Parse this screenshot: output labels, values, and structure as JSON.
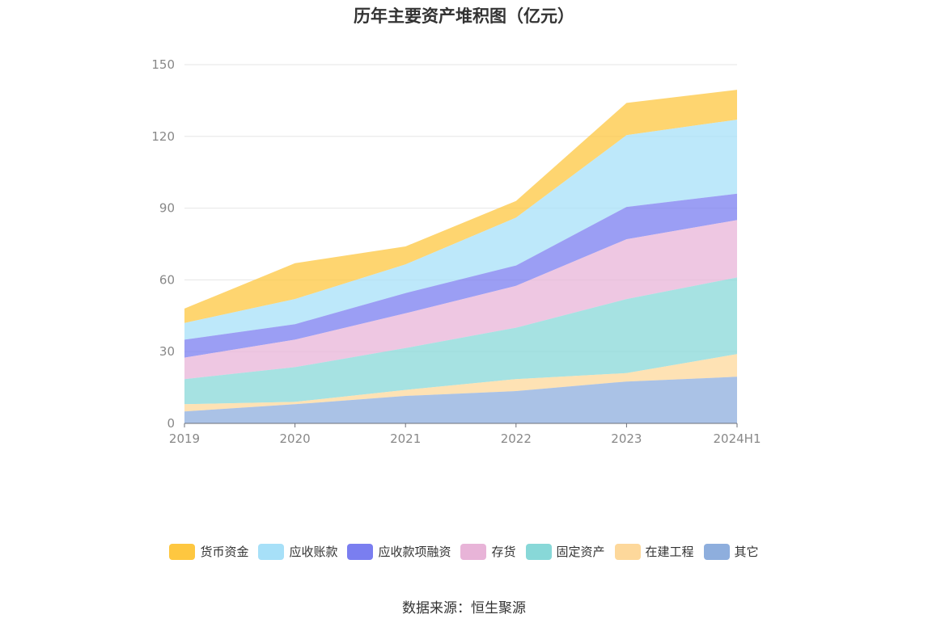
{
  "chart_data": {
    "type": "area",
    "stacked": true,
    "title": "历年主要资产堆积图（亿元）",
    "x": [
      "2019",
      "2020",
      "2021",
      "2022",
      "2023",
      "2024H1"
    ],
    "ylim": [
      0,
      150
    ],
    "yticks": [
      0,
      30,
      60,
      90,
      120,
      150
    ],
    "grid": true,
    "legend_position": "bottom",
    "series": [
      {
        "name": "其它",
        "color": "#8eaedd",
        "values": [
          5.0,
          8.0,
          11.5,
          13.5,
          17.5,
          19.5
        ]
      },
      {
        "name": "在建工程",
        "color": "#fdd89b",
        "values": [
          3.0,
          1.0,
          2.5,
          5.0,
          3.5,
          9.5
        ]
      },
      {
        "name": "固定资产",
        "color": "#88d8d8",
        "values": [
          10.5,
          14.5,
          17.5,
          21.5,
          31.0,
          32.0
        ]
      },
      {
        "name": "存货",
        "color": "#e8b4d8",
        "values": [
          9.0,
          11.5,
          14.5,
          17.5,
          25.0,
          24.0
        ]
      },
      {
        "name": "应收款项融资",
        "color": "#7a7ef0",
        "values": [
          7.5,
          6.5,
          8.5,
          8.5,
          13.5,
          11.0
        ]
      },
      {
        "name": "应收账款",
        "color": "#a7e0f8",
        "values": [
          7.0,
          10.5,
          12.0,
          20.0,
          30.0,
          31.0
        ]
      },
      {
        "name": "货币资金",
        "color": "#fec740",
        "values": [
          6.0,
          15.0,
          7.5,
          7.0,
          13.5,
          12.5
        ]
      }
    ]
  },
  "legend_order": [
    "货币资金",
    "应收账款",
    "应收款项融资",
    "存货",
    "固定资产",
    "在建工程",
    "其它"
  ],
  "source": "数据来源：恒生聚源"
}
